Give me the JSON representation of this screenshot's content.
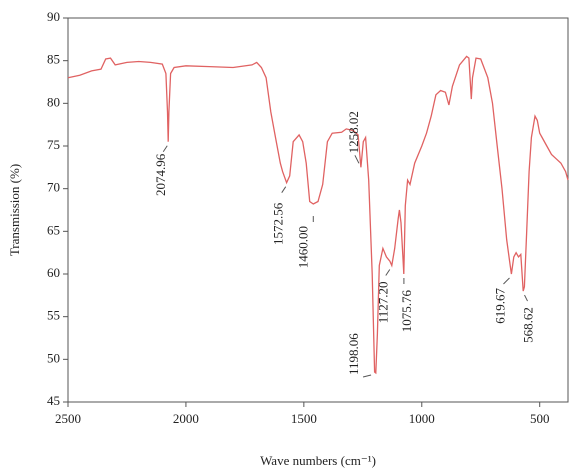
{
  "chart_data": {
    "type": "line",
    "x_label": "Wave numbers (cm⁻¹)",
    "y_label": "Transmission (%)",
    "xlim": [
      2500,
      380
    ],
    "ylim": [
      45,
      90
    ],
    "xticks": [
      2500,
      2000,
      1500,
      1000,
      500
    ],
    "yticks": [
      45,
      50,
      55,
      60,
      65,
      70,
      75,
      80,
      85,
      90
    ],
    "x": [
      2500,
      2450,
      2400,
      2360,
      2340,
      2320,
      2300,
      2250,
      2200,
      2150,
      2100,
      2085,
      2078,
      2075,
      2072,
      2065,
      2050,
      2000,
      1900,
      1800,
      1720,
      1700,
      1680,
      1660,
      1640,
      1620,
      1600,
      1590,
      1573,
      1560,
      1545,
      1520,
      1505,
      1490,
      1475,
      1460,
      1440,
      1420,
      1400,
      1380,
      1340,
      1320,
      1290,
      1270,
      1258,
      1248,
      1238,
      1225,
      1210,
      1200,
      1195,
      1188,
      1180,
      1165,
      1150,
      1135,
      1127,
      1115,
      1100,
      1095,
      1088,
      1080,
      1076,
      1070,
      1060,
      1050,
      1030,
      1000,
      980,
      960,
      940,
      920,
      900,
      885,
      870,
      840,
      810,
      800,
      790,
      785,
      770,
      750,
      720,
      700,
      680,
      660,
      640,
      625,
      620,
      610,
      600,
      590,
      580,
      570,
      565,
      555,
      545,
      535,
      520,
      510,
      500,
      490,
      470,
      450,
      430,
      410,
      390,
      380
    ],
    "series": [
      {
        "name": "Transmission",
        "color": "#e06262",
        "values": [
          83.0,
          83.3,
          83.8,
          84.0,
          85.2,
          85.3,
          84.5,
          84.8,
          84.9,
          84.8,
          84.6,
          83.5,
          79,
          75.5,
          79,
          83.5,
          84.2,
          84.4,
          84.3,
          84.2,
          84.5,
          84.8,
          84.2,
          83.0,
          79,
          76,
          73,
          72,
          70.7,
          71.5,
          75.5,
          76.3,
          75.5,
          73,
          68.5,
          68.2,
          68.5,
          70.5,
          75.5,
          76.5,
          76.6,
          77.0,
          76.8,
          76.3,
          72.5,
          75.5,
          76,
          71,
          60,
          48.5,
          48.4,
          53,
          61,
          63,
          62,
          61.5,
          61,
          63,
          66.5,
          67.5,
          66,
          62,
          60,
          68,
          71,
          70.5,
          73,
          75,
          76.5,
          78.5,
          81,
          81.5,
          81.3,
          79.8,
          82,
          84.5,
          85.5,
          85.3,
          80.5,
          83,
          85.3,
          85.2,
          83,
          80,
          75,
          70,
          64,
          61,
          60,
          62,
          62.5,
          62,
          62.3,
          58,
          58.5,
          65,
          72,
          76,
          78.5,
          78,
          76.5,
          76,
          75,
          74,
          73.5,
          73,
          72,
          71
        ]
      }
    ],
    "annotations": [
      {
        "label": "2074.96",
        "x": 2074.96,
        "y": 75.5
      },
      {
        "label": "1572.56",
        "x": 1572.56,
        "y": 70.7
      },
      {
        "label": "1460.00",
        "x": 1460.0,
        "y": 68.2
      },
      {
        "label": "1258.02",
        "x": 1258.02,
        "y": 72.5
      },
      {
        "label": "1198.06",
        "x": 1198.06,
        "y": 48.4
      },
      {
        "label": "1127.20",
        "x": 1127.2,
        "y": 61
      },
      {
        "label": "1075.76",
        "x": 1075.76,
        "y": 60
      },
      {
        "label": "619.67",
        "x": 619.67,
        "y": 60
      },
      {
        "label": "568.62",
        "x": 568.62,
        "y": 58
      }
    ]
  }
}
